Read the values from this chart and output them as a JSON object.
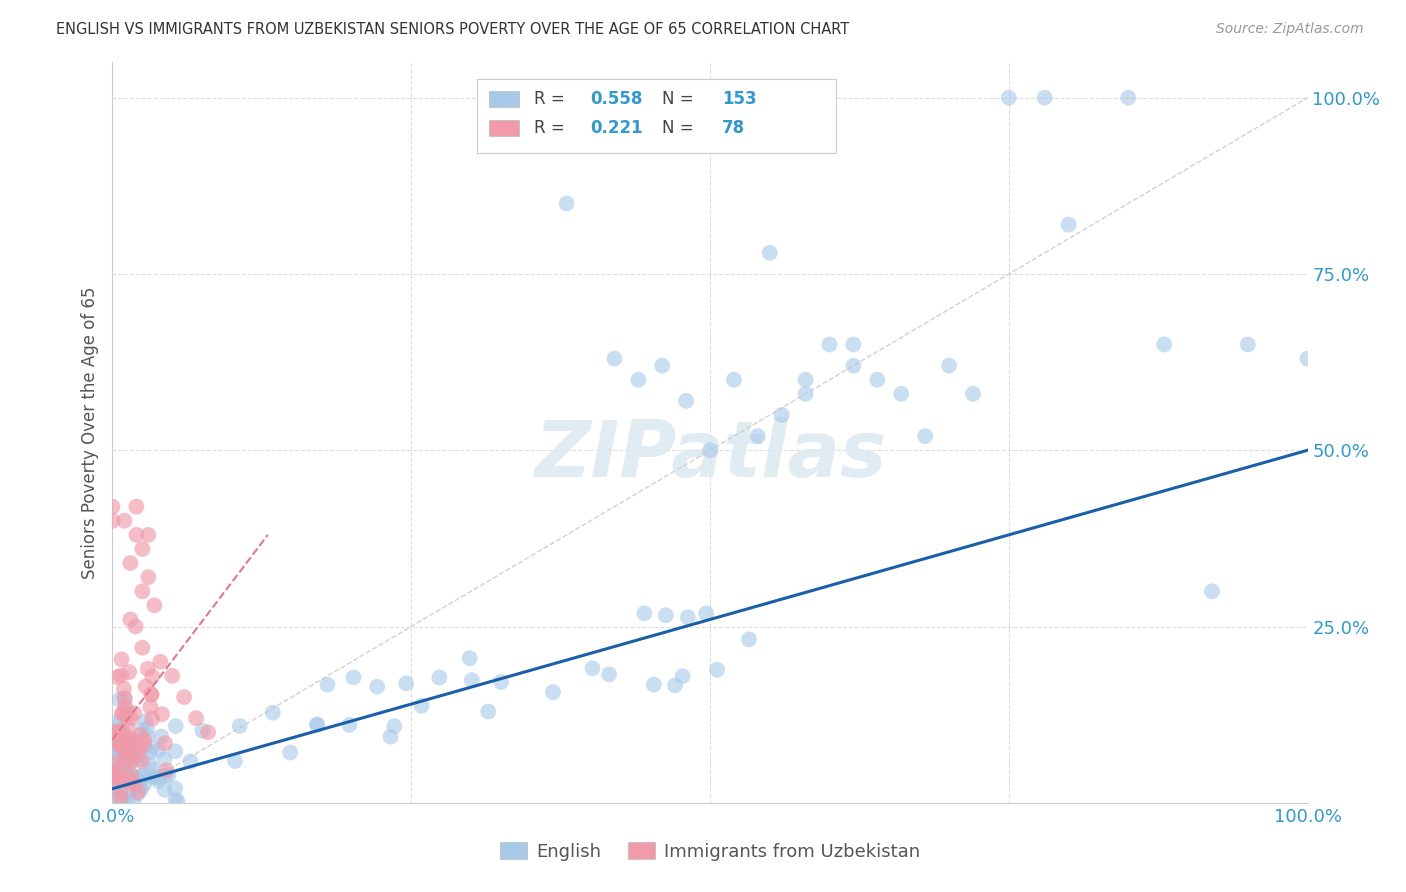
{
  "title": "ENGLISH VS IMMIGRANTS FROM UZBEKISTAN SENIORS POVERTY OVER THE AGE OF 65 CORRELATION CHART",
  "source": "Source: ZipAtlas.com",
  "ylabel": "Seniors Poverty Over the Age of 65",
  "xlim": [
    0.0,
    1.0
  ],
  "ylim": [
    0.0,
    1.05
  ],
  "english_R": 0.558,
  "english_N": 153,
  "uzbek_R": 0.221,
  "uzbek_N": 78,
  "english_color": "#a8c8e8",
  "uzbek_color": "#f09aaa",
  "trendline_english_color": "#1a5fa8",
  "trendline_uzbek_color": "#e07888",
  "diagonal_color": "#cccccc",
  "grid_color": "#dddddd",
  "background_color": "#ffffff",
  "watermark_color": "#dce8f0",
  "legend_label_english": "English",
  "legend_label_uzbek": "Immigrants from Uzbekistan",
  "trendline_eng_x0": 0.0,
  "trendline_eng_y0": 0.02,
  "trendline_eng_x1": 1.0,
  "trendline_eng_y1": 0.5,
  "trendline_uzb_x0": 0.0,
  "trendline_uzb_y0": 0.09,
  "trendline_uzb_x1": 0.13,
  "trendline_uzb_y1": 0.38
}
